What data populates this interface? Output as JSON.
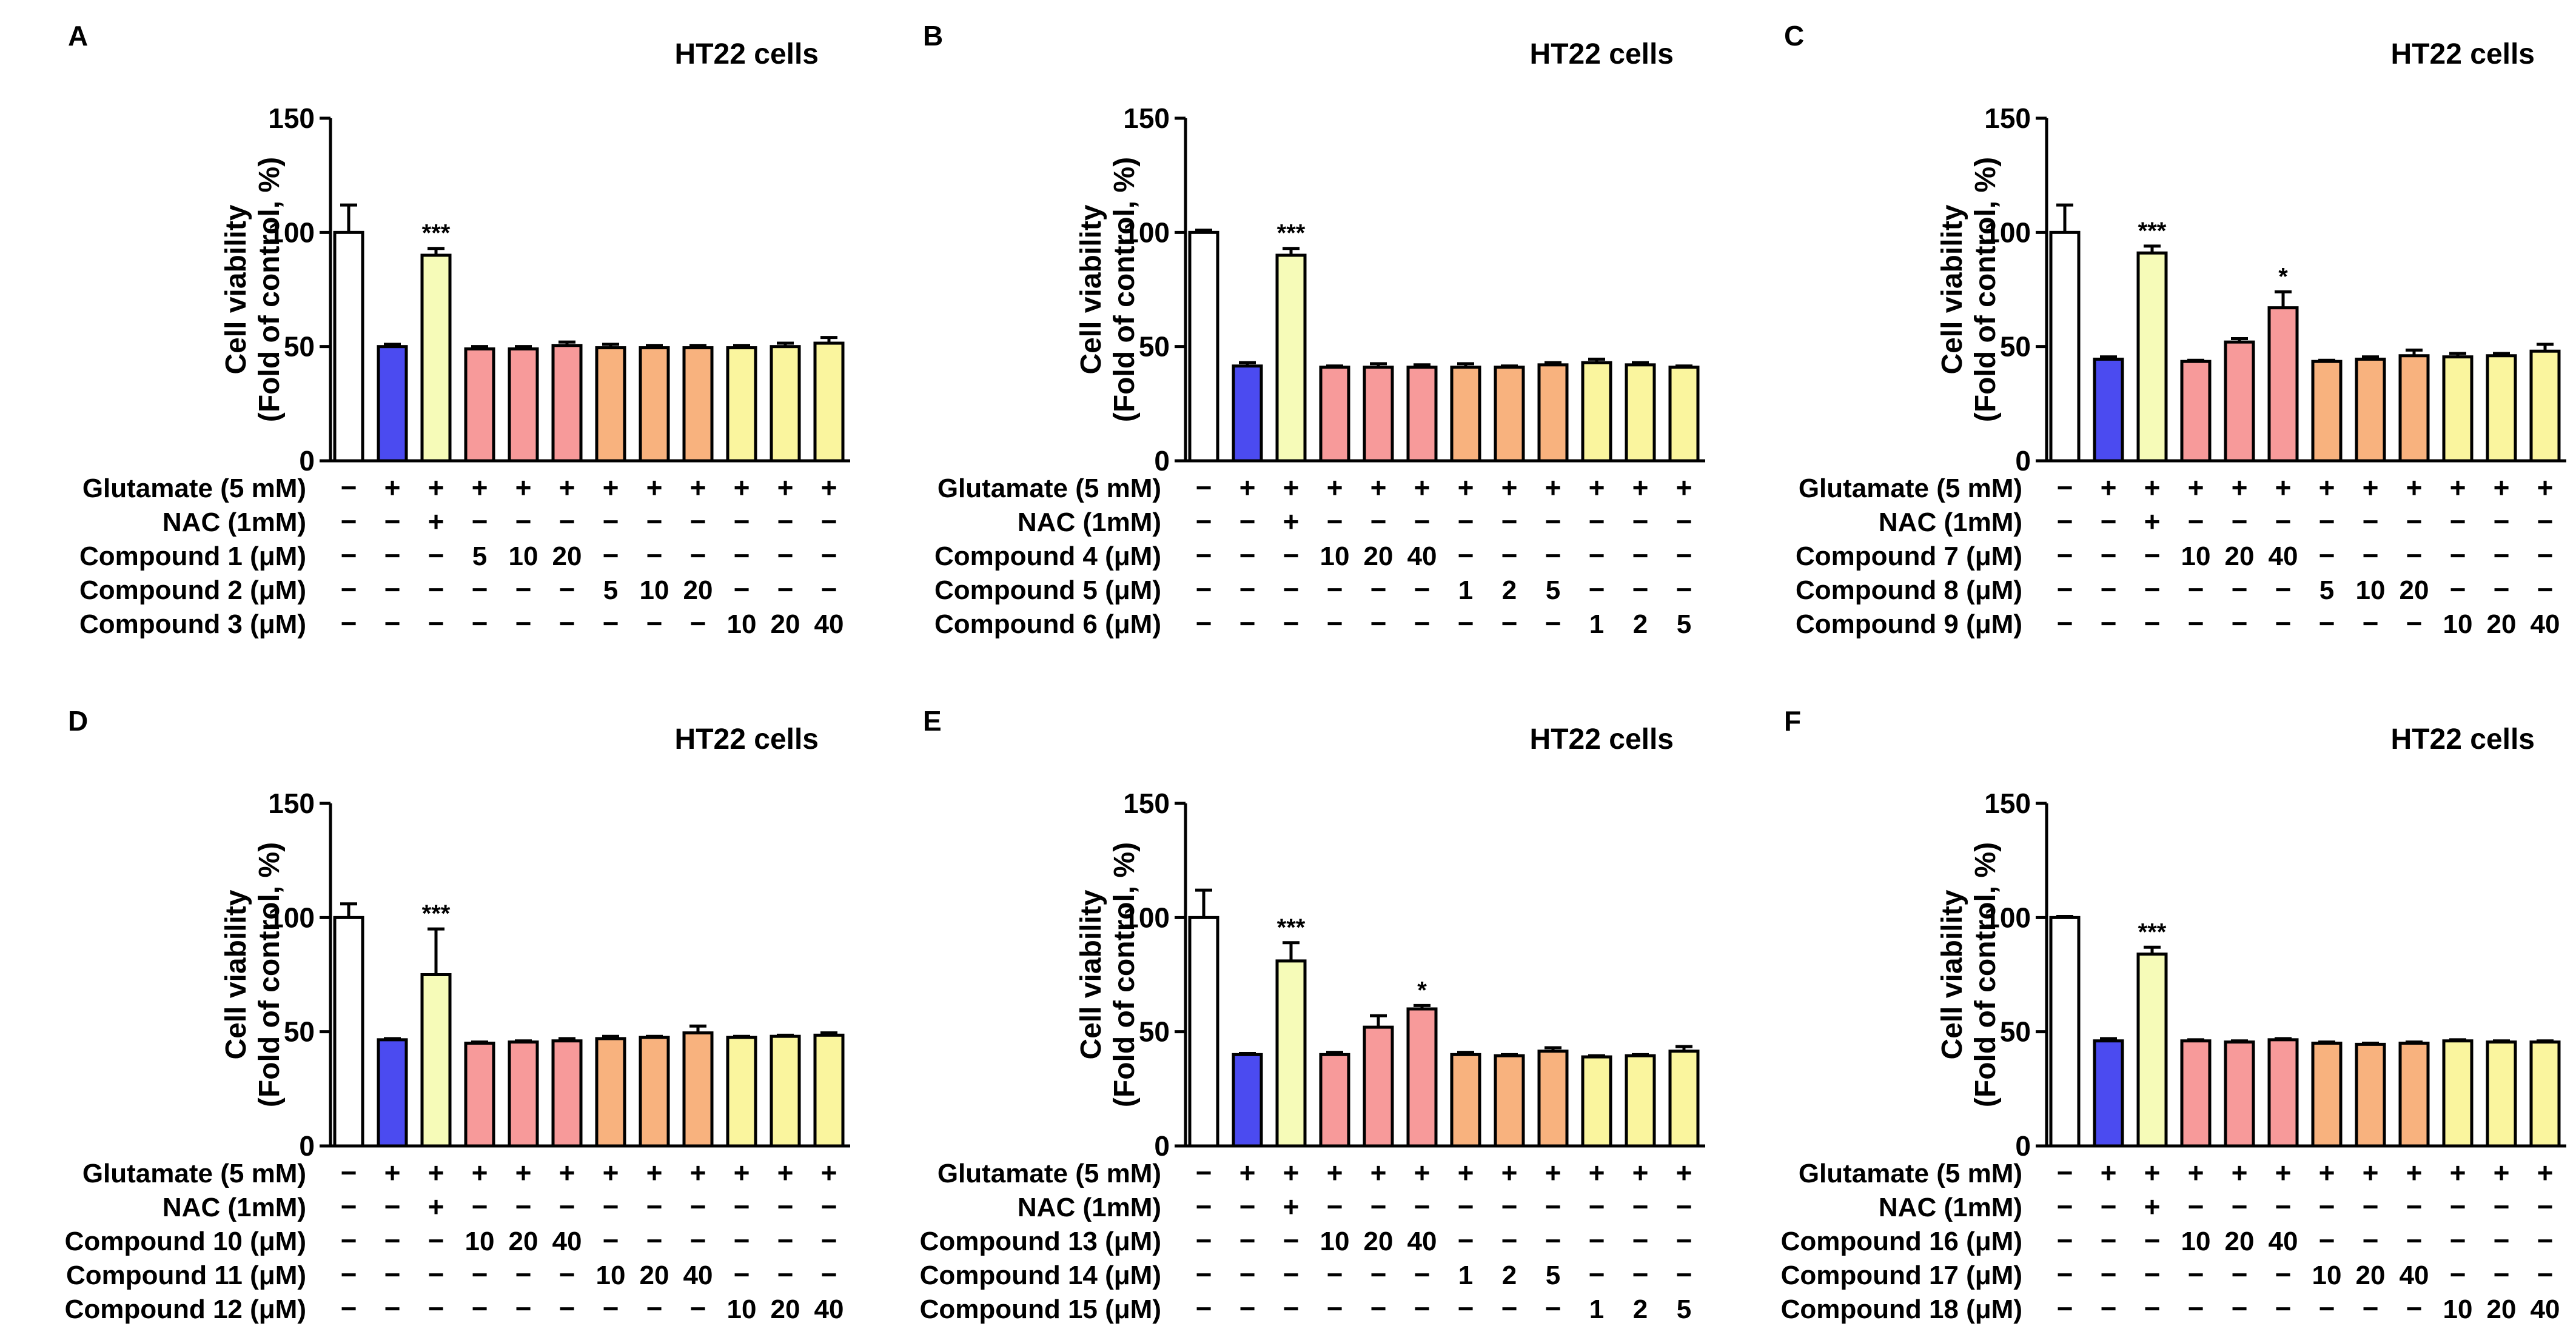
{
  "colors": {
    "control": "#ffffff",
    "glutamate": "#4b4bf0",
    "nac": "#f6fbb8",
    "red_group": "#f79a9a",
    "orange_group": "#f8b27e",
    "yellow_group": "#faf59e",
    "outline": "#000000"
  },
  "chart_data": [
    {
      "panel": "A",
      "type": "bar",
      "title": "HT22 cells",
      "ylabel": [
        "Cell viability",
        "(Fold of control, %)"
      ],
      "ylim": [
        0,
        150
      ],
      "yticks": [
        0,
        50,
        100,
        150
      ],
      "values": [
        100,
        50,
        90,
        49,
        49,
        50.5,
        49.5,
        49.5,
        49.5,
        49.5,
        50,
        51.5
      ],
      "errors": [
        12,
        1,
        3,
        1,
        1,
        1.5,
        1.5,
        1,
        1,
        1,
        1.5,
        2.5
      ],
      "colors": [
        "control",
        "glutamate",
        "nac",
        "red_group",
        "red_group",
        "red_group",
        "orange_group",
        "orange_group",
        "orange_group",
        "yellow_group",
        "yellow_group",
        "yellow_group"
      ],
      "significance": [
        "",
        "",
        "***",
        "",
        "",
        "",
        "",
        "",
        "",
        "",
        "",
        ""
      ],
      "rows": [
        {
          "label": "Glutamate (5 mM)",
          "cells": [
            "−",
            "+",
            "+",
            "+",
            "+",
            "+",
            "+",
            "+",
            "+",
            "+",
            "+",
            "+"
          ]
        },
        {
          "label": "NAC (1mM)",
          "cells": [
            "−",
            "−",
            "+",
            "−",
            "−",
            "−",
            "−",
            "−",
            "−",
            "−",
            "−",
            "−"
          ]
        },
        {
          "label": "Compound 1 (μM)",
          "cells": [
            "−",
            "−",
            "−",
            "5",
            "10",
            "20",
            "−",
            "−",
            "−",
            "−",
            "−",
            "−"
          ]
        },
        {
          "label": "Compound 2 (μM)",
          "cells": [
            "−",
            "−",
            "−",
            "−",
            "−",
            "−",
            "5",
            "10",
            "20",
            "−",
            "−",
            "−"
          ]
        },
        {
          "label": "Compound 3 (μM)",
          "cells": [
            "−",
            "−",
            "−",
            "−",
            "−",
            "−",
            "−",
            "−",
            "−",
            "10",
            "20",
            "40"
          ]
        }
      ]
    },
    {
      "panel": "B",
      "type": "bar",
      "title": "HT22 cells",
      "ylabel": [
        "Cell viability",
        "(Fold of control, %)"
      ],
      "ylim": [
        0,
        150
      ],
      "yticks": [
        0,
        50,
        100,
        150
      ],
      "values": [
        100,
        41.5,
        90,
        41,
        41,
        41,
        41,
        41,
        42,
        43,
        42,
        41
      ],
      "errors": [
        1,
        1.5,
        3,
        0.5,
        1.5,
        1,
        1.5,
        0.5,
        1,
        1.5,
        1,
        0.5
      ],
      "colors": [
        "control",
        "glutamate",
        "nac",
        "red_group",
        "red_group",
        "red_group",
        "orange_group",
        "orange_group",
        "orange_group",
        "yellow_group",
        "yellow_group",
        "yellow_group"
      ],
      "significance": [
        "",
        "",
        "***",
        "",
        "",
        "",
        "",
        "",
        "",
        "",
        "",
        ""
      ],
      "rows": [
        {
          "label": "Glutamate (5 mM)",
          "cells": [
            "−",
            "+",
            "+",
            "+",
            "+",
            "+",
            "+",
            "+",
            "+",
            "+",
            "+",
            "+"
          ]
        },
        {
          "label": "NAC (1mM)",
          "cells": [
            "−",
            "−",
            "+",
            "−",
            "−",
            "−",
            "−",
            "−",
            "−",
            "−",
            "−",
            "−"
          ]
        },
        {
          "label": "Compound 4 (μM)",
          "cells": [
            "−",
            "−",
            "−",
            "10",
            "20",
            "40",
            "−",
            "−",
            "−",
            "−",
            "−",
            "−"
          ]
        },
        {
          "label": "Compound 5 (μM)",
          "cells": [
            "−",
            "−",
            "−",
            "−",
            "−",
            "−",
            "1",
            "2",
            "5",
            "−",
            "−",
            "−"
          ]
        },
        {
          "label": "Compound 6 (μM)",
          "cells": [
            "−",
            "−",
            "−",
            "−",
            "−",
            "−",
            "−",
            "−",
            "−",
            "1",
            "2",
            "5"
          ]
        }
      ]
    },
    {
      "panel": "C",
      "type": "bar",
      "title": "HT22 cells",
      "ylabel": [
        "Cell viability",
        "(Fold of control, %)"
      ],
      "ylim": [
        0,
        150
      ],
      "yticks": [
        0,
        50,
        100,
        150
      ],
      "values": [
        100,
        44.5,
        91,
        43.5,
        52,
        67,
        43.5,
        44.5,
        46,
        45.5,
        46,
        48
      ],
      "errors": [
        12,
        1,
        3,
        0.5,
        1.5,
        7,
        0.5,
        1,
        2.5,
        1.5,
        1,
        3
      ],
      "colors": [
        "control",
        "glutamate",
        "nac",
        "red_group",
        "red_group",
        "red_group",
        "orange_group",
        "orange_group",
        "orange_group",
        "yellow_group",
        "yellow_group",
        "yellow_group"
      ],
      "significance": [
        "",
        "",
        "***",
        "",
        "",
        "*",
        "",
        "",
        "",
        "",
        "",
        ""
      ],
      "rows": [
        {
          "label": "Glutamate (5 mM)",
          "cells": [
            "−",
            "+",
            "+",
            "+",
            "+",
            "+",
            "+",
            "+",
            "+",
            "+",
            "+",
            "+"
          ]
        },
        {
          "label": "NAC (1mM)",
          "cells": [
            "−",
            "−",
            "+",
            "−",
            "−",
            "−",
            "−",
            "−",
            "−",
            "−",
            "−",
            "−"
          ]
        },
        {
          "label": "Compound 7 (μM)",
          "cells": [
            "−",
            "−",
            "−",
            "10",
            "20",
            "40",
            "−",
            "−",
            "−",
            "−",
            "−",
            "−"
          ]
        },
        {
          "label": "Compound 8 (μM)",
          "cells": [
            "−",
            "−",
            "−",
            "−",
            "−",
            "−",
            "5",
            "10",
            "20",
            "−",
            "−",
            "−"
          ]
        },
        {
          "label": "Compound 9 (μM)",
          "cells": [
            "−",
            "−",
            "−",
            "−",
            "−",
            "−",
            "−",
            "−",
            "−",
            "10",
            "20",
            "40"
          ]
        }
      ]
    },
    {
      "panel": "D",
      "type": "bar",
      "title": "HT22 cells",
      "ylabel": [
        "Cell viability",
        "(Fold of control, %)"
      ],
      "ylim": [
        0,
        150
      ],
      "yticks": [
        0,
        50,
        100,
        150
      ],
      "values": [
        100,
        46.5,
        75,
        45,
        45.5,
        46,
        47,
        47.5,
        49.5,
        47.5,
        48,
        48.5
      ],
      "errors": [
        6,
        0.5,
        20,
        0.5,
        0.5,
        1,
        1,
        0.5,
        3,
        0.5,
        0.5,
        1
      ],
      "colors": [
        "control",
        "glutamate",
        "nac",
        "red_group",
        "red_group",
        "red_group",
        "orange_group",
        "orange_group",
        "orange_group",
        "yellow_group",
        "yellow_group",
        "yellow_group"
      ],
      "significance": [
        "",
        "",
        "***",
        "",
        "",
        "",
        "",
        "",
        "",
        "",
        "",
        ""
      ],
      "rows": [
        {
          "label": "Glutamate (5 mM)",
          "cells": [
            "−",
            "+",
            "+",
            "+",
            "+",
            "+",
            "+",
            "+",
            "+",
            "+",
            "+",
            "+"
          ]
        },
        {
          "label": "NAC (1mM)",
          "cells": [
            "−",
            "−",
            "+",
            "−",
            "−",
            "−",
            "−",
            "−",
            "−",
            "−",
            "−",
            "−"
          ]
        },
        {
          "label": "Compound 10 (μM)",
          "cells": [
            "−",
            "−",
            "−",
            "10",
            "20",
            "40",
            "−",
            "−",
            "−",
            "−",
            "−",
            "−"
          ]
        },
        {
          "label": "Compound 11 (μM)",
          "cells": [
            "−",
            "−",
            "−",
            "−",
            "−",
            "−",
            "10",
            "20",
            "40",
            "−",
            "−",
            "−"
          ]
        },
        {
          "label": "Compound 12 (μM)",
          "cells": [
            "−",
            "−",
            "−",
            "−",
            "−",
            "−",
            "−",
            "−",
            "−",
            "10",
            "20",
            "40"
          ]
        }
      ]
    },
    {
      "panel": "E",
      "type": "bar",
      "title": "HT22 cells",
      "ylabel": [
        "Cell viability",
        "(Fold of control, %)"
      ],
      "ylim": [
        0,
        150
      ],
      "yticks": [
        0,
        50,
        100,
        150
      ],
      "values": [
        100,
        40,
        81,
        40,
        52,
        60,
        40,
        39.5,
        41.5,
        39,
        39.5,
        41.5
      ],
      "errors": [
        12,
        0.5,
        8,
        1,
        5,
        1.5,
        1,
        0.5,
        1.5,
        0.5,
        0.5,
        2
      ],
      "colors": [
        "control",
        "glutamate",
        "nac",
        "red_group",
        "red_group",
        "red_group",
        "orange_group",
        "orange_group",
        "orange_group",
        "yellow_group",
        "yellow_group",
        "yellow_group"
      ],
      "significance": [
        "",
        "",
        "***",
        "",
        "",
        "*",
        "",
        "",
        "",
        "",
        "",
        ""
      ],
      "rows": [
        {
          "label": "Glutamate (5 mM)",
          "cells": [
            "−",
            "+",
            "+",
            "+",
            "+",
            "+",
            "+",
            "+",
            "+",
            "+",
            "+",
            "+"
          ]
        },
        {
          "label": "NAC (1mM)",
          "cells": [
            "−",
            "−",
            "+",
            "−",
            "−",
            "−",
            "−",
            "−",
            "−",
            "−",
            "−",
            "−"
          ]
        },
        {
          "label": "Compound 13 (μM)",
          "cells": [
            "−",
            "−",
            "−",
            "10",
            "20",
            "40",
            "−",
            "−",
            "−",
            "−",
            "−",
            "−"
          ]
        },
        {
          "label": "Compound 14 (μM)",
          "cells": [
            "−",
            "−",
            "−",
            "−",
            "−",
            "−",
            "1",
            "2",
            "5",
            "−",
            "−",
            "−"
          ]
        },
        {
          "label": "Compound 15 (μM)",
          "cells": [
            "−",
            "−",
            "−",
            "−",
            "−",
            "−",
            "−",
            "−",
            "−",
            "1",
            "2",
            "5"
          ]
        }
      ]
    },
    {
      "panel": "F",
      "type": "bar",
      "title": "HT22 cells",
      "ylabel": [
        "Cell viability",
        "(Fold of control, %)"
      ],
      "ylim": [
        0,
        150
      ],
      "yticks": [
        0,
        50,
        100,
        150
      ],
      "values": [
        100,
        46,
        84,
        46,
        45.5,
        46.5,
        45,
        44.5,
        45,
        46,
        45.5,
        45.5
      ],
      "errors": [
        0.5,
        1,
        3,
        0.5,
        0.5,
        0.5,
        0.5,
        0.5,
        0.5,
        0.5,
        0.5,
        0.5
      ],
      "colors": [
        "control",
        "glutamate",
        "nac",
        "red_group",
        "red_group",
        "red_group",
        "orange_group",
        "orange_group",
        "orange_group",
        "yellow_group",
        "yellow_group",
        "yellow_group"
      ],
      "significance": [
        "",
        "",
        "***",
        "",
        "",
        "",
        "",
        "",
        "",
        "",
        "",
        ""
      ],
      "rows": [
        {
          "label": "Glutamate (5 mM)",
          "cells": [
            "−",
            "+",
            "+",
            "+",
            "+",
            "+",
            "+",
            "+",
            "+",
            "+",
            "+",
            "+"
          ]
        },
        {
          "label": "NAC (1mM)",
          "cells": [
            "−",
            "−",
            "+",
            "−",
            "−",
            "−",
            "−",
            "−",
            "−",
            "−",
            "−",
            "−"
          ]
        },
        {
          "label": "Compound 16 (μM)",
          "cells": [
            "−",
            "−",
            "−",
            "10",
            "20",
            "40",
            "−",
            "−",
            "−",
            "−",
            "−",
            "−"
          ]
        },
        {
          "label": "Compound 17 (μM)",
          "cells": [
            "−",
            "−",
            "−",
            "−",
            "−",
            "−",
            "10",
            "20",
            "40",
            "−",
            "−",
            "−"
          ]
        },
        {
          "label": "Compound 18 (μM)",
          "cells": [
            "−",
            "−",
            "−",
            "−",
            "−",
            "−",
            "−",
            "−",
            "−",
            "10",
            "20",
            "40"
          ]
        }
      ]
    }
  ]
}
